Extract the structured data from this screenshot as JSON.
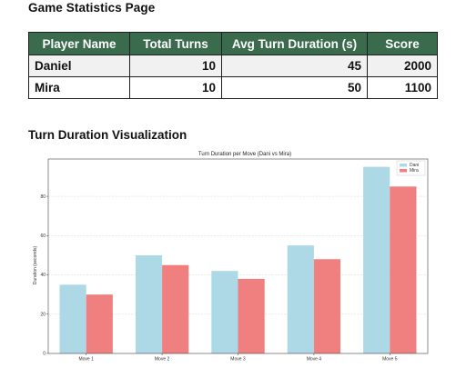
{
  "page": {
    "title": "Game Statistics Page",
    "chart_section_title": "Turn Duration Visualization"
  },
  "table": {
    "headers": [
      "Player Name",
      "Total Turns",
      "Avg Turn Duration (s)",
      "Score"
    ],
    "rows": [
      [
        "Daniel",
        "10",
        "45",
        "2000"
      ],
      [
        "Mira",
        "10",
        "50",
        "1100"
      ]
    ]
  },
  "colors": {
    "header_bg": "#3a6b4c",
    "series_dani": "#add8e6",
    "series_mira": "#f08080"
  },
  "chart_data": {
    "type": "bar",
    "title": "Turn Duration per Move (Dani vs Mira)",
    "xlabel": "",
    "ylabel": "Duration (seconds)",
    "categories": [
      "Move 1",
      "Move 2",
      "Move 3",
      "Move 4",
      "Move 5"
    ],
    "series": [
      {
        "name": "Dani",
        "color": "#add8e6",
        "values": [
          35,
          50,
          42,
          55,
          95
        ]
      },
      {
        "name": "Mira",
        "color": "#f08080",
        "values": [
          30,
          45,
          38,
          48,
          85
        ]
      }
    ],
    "ylim": [
      0,
      99
    ],
    "yticks": [
      0,
      20,
      40,
      60,
      80
    ],
    "grid": true,
    "legend_position": "top-right"
  }
}
